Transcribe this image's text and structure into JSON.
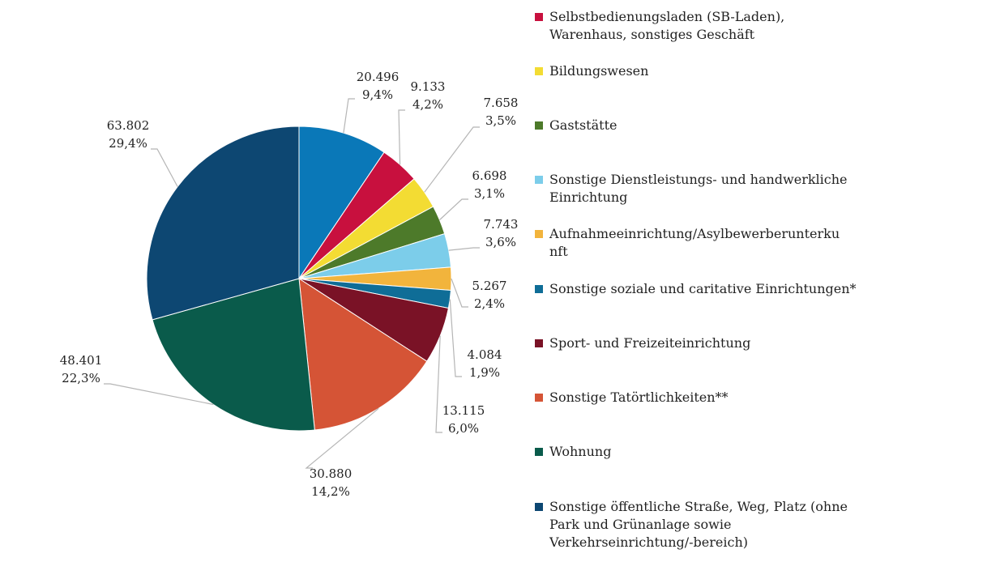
{
  "chart_data": {
    "type": "pie",
    "title": "",
    "slices": [
      {
        "name": "Selbstbedienungsladen (SB-Laden), Warenhaus, sonstiges Geschäft",
        "value": 9133,
        "value_label": "9.133",
        "percent_label": "4,2%",
        "color": "#c8103e"
      },
      {
        "name": "Bildungswesen",
        "value": 7658,
        "value_label": "7.658",
        "percent_label": "3,5%",
        "color": "#f3dc33"
      },
      {
        "name": "Gaststätte",
        "value": 6698,
        "value_label": "6.698",
        "percent_label": "3,1%",
        "color": "#4d7a2a"
      },
      {
        "name": "Sonstige Dienstleistungs- und handwerkliche Einrichtung",
        "value": 7743,
        "value_label": "7.743",
        "percent_label": "3,6%",
        "color": "#7ccdea"
      },
      {
        "name": "Aufnahmeeinrichtung/Asylbewerberunterkunft",
        "value": 5267,
        "value_label": "5.267",
        "percent_label": "2,4%",
        "color": "#f2b43c"
      },
      {
        "name": "Sonstige soziale und caritative Einrichtungen*",
        "value": 4084,
        "value_label": "4.084",
        "percent_label": "1,9%",
        "color": "#0f6d97"
      },
      {
        "name": "Sport- und Freizeiteinrichtung",
        "value": 13115,
        "value_label": "13.115",
        "percent_label": "6,0%",
        "color": "#7a1226"
      },
      {
        "name": "Sonstige Tatörtlichkeiten**",
        "value": 30880,
        "value_label": "30.880",
        "percent_label": "14,2%",
        "color": "#d55436"
      },
      {
        "name": "Wohnung",
        "value": 48401,
        "value_label": "48.401",
        "percent_label": "22,3%",
        "color": "#0a5b4b"
      },
      {
        "name": "Sonstige öffentliche Straße, Weg, Platz (ohne Park und Grünanlage sowie Verkehrseinrichtung/-bereich)",
        "value": 63802,
        "value_label": "63.802",
        "percent_label": "29,4%",
        "color": "#0d4772"
      },
      {
        "name": "",
        "value": 20496,
        "value_label": "20.496",
        "percent_label": "9,4%",
        "color": "#0a78b8"
      }
    ],
    "legend_position": "right"
  },
  "legend": [
    {
      "lines": [
        "Selbstbedienungsladen (SB-Laden),",
        "Warenhaus, sonstiges Geschäft"
      ],
      "color": "#c8103e"
    },
    {
      "lines": [
        "Bildungswesen"
      ],
      "color": "#f3dc33"
    },
    {
      "lines": [
        "Gaststätte"
      ],
      "color": "#4d7a2a"
    },
    {
      "lines": [
        "Sonstige Dienstleistungs- und handwerkliche",
        "Einrichtung"
      ],
      "color": "#7ccdea"
    },
    {
      "lines": [
        "Aufnahmeeinrichtung/Asylbewerberunterku",
        "nft"
      ],
      "color": "#f2b43c"
    },
    {
      "lines": [
        "Sonstige soziale und caritative Einrichtungen*"
      ],
      "color": "#0f6d97"
    },
    {
      "lines": [
        "Sport- und Freizeiteinrichtung"
      ],
      "color": "#7a1226"
    },
    {
      "lines": [
        "Sonstige Tatörtlichkeiten**"
      ],
      "color": "#d55436"
    },
    {
      "lines": [
        "Wohnung"
      ],
      "color": "#0a5b4b"
    },
    {
      "lines": [
        "Sonstige öffentliche Straße, Weg, Platz (ohne",
        "Park und Grünanlage sowie",
        "Verkehrseinrichtung/-bereich)"
      ],
      "color": "#0d4772"
    }
  ]
}
